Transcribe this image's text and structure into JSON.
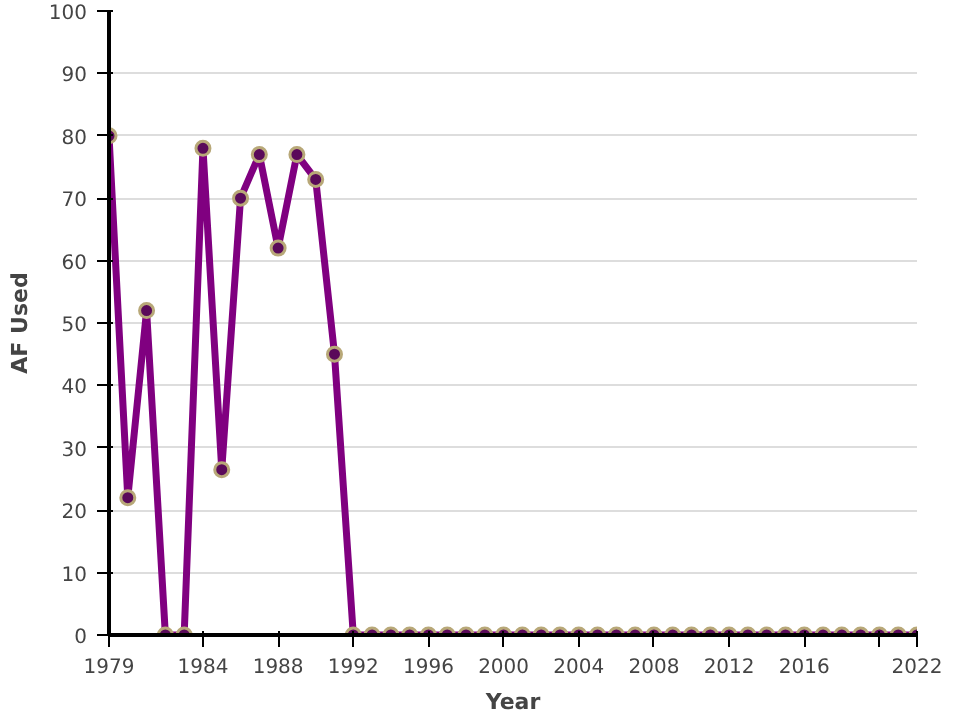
{
  "chart_data": {
    "type": "line",
    "xlabel": "Year",
    "ylabel": "AF Used",
    "x": [
      1979,
      1980,
      1981,
      1982,
      1983,
      1984,
      1985,
      1986,
      1987,
      1988,
      1989,
      1990,
      1991,
      1992,
      1993,
      1994,
      1995,
      1996,
      1997,
      1998,
      1999,
      2000,
      2001,
      2002,
      2003,
      2004,
      2005,
      2006,
      2007,
      2008,
      2009,
      2010,
      2011,
      2012,
      2013,
      2014,
      2015,
      2016,
      2017,
      2018,
      2019,
      2020,
      2021,
      2022
    ],
    "series": [
      {
        "color": "#800080",
        "values": [
          80,
          22,
          52,
          0,
          0,
          78,
          26.5,
          70,
          77,
          62,
          77,
          73,
          45,
          0,
          0,
          0,
          0,
          0,
          0,
          0,
          0,
          0,
          0,
          0,
          0,
          0,
          0,
          0,
          0,
          0,
          0,
          0,
          0,
          0,
          0,
          0,
          0,
          0,
          0,
          0,
          0,
          0,
          0,
          0
        ]
      }
    ],
    "xlim": [
      1979,
      2022
    ],
    "xticks": [
      1979,
      1984,
      1988,
      1992,
      1996,
      2000,
      2004,
      2008,
      2012,
      2016,
      {
        "value": 2020,
        "label": null
      },
      2022
    ],
    "ylim": [
      0,
      100
    ],
    "yticks": [
      0,
      10,
      20,
      30,
      40,
      50,
      60,
      70,
      80,
      90,
      100
    ],
    "grid": "y",
    "marker": "circle",
    "line_style": "solid"
  }
}
